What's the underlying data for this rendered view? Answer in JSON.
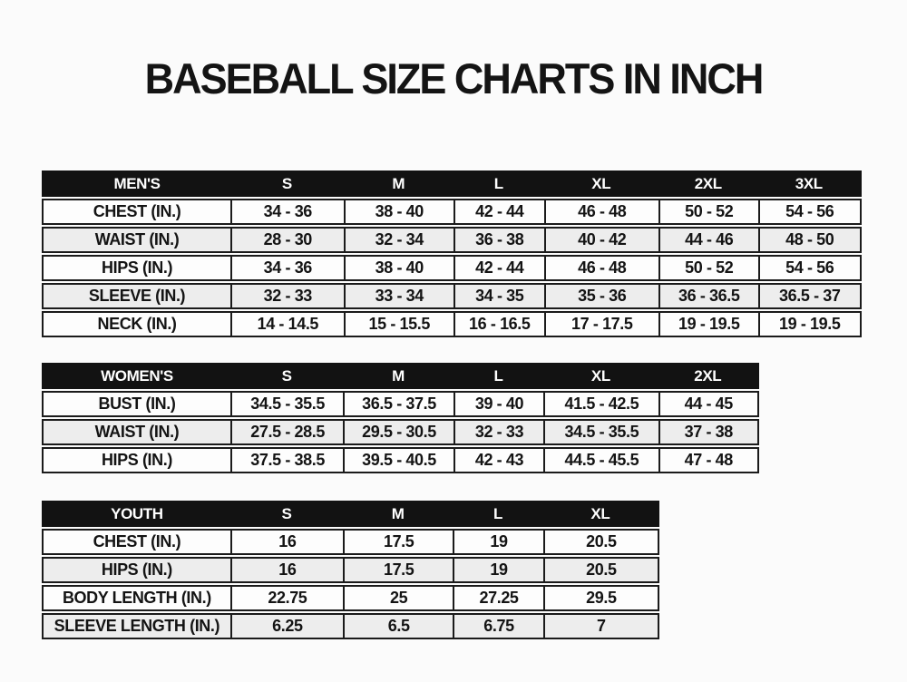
{
  "title": "BASEBALL SIZE CHARTS IN INCH",
  "colors": {
    "page_bg": "#fbfbfb",
    "header_bg": "#121212",
    "header_text": "#ffffff",
    "row_bg": "#fdfdfd",
    "row_alt_bg": "#ededed",
    "border": "#1b1b1b",
    "text": "#141414"
  },
  "tables": [
    {
      "name": "mens",
      "header": [
        "MEN'S",
        "S",
        "M",
        "L",
        "XL",
        "2XL",
        "3XL"
      ],
      "rows": [
        {
          "label": "CHEST (IN.)",
          "values": [
            "34 - 36",
            "38 - 40",
            "42 - 44",
            "46 - 48",
            "50 - 52",
            "54 - 56"
          ]
        },
        {
          "label": "WAIST (IN.)",
          "values": [
            "28 - 30",
            "32 - 34",
            "36 - 38",
            "40 - 42",
            "44 - 46",
            "48 - 50"
          ]
        },
        {
          "label": "HIPS (IN.)",
          "values": [
            "34 - 36",
            "38 - 40",
            "42 - 44",
            "46 - 48",
            "50 - 52",
            "54 - 56"
          ]
        },
        {
          "label": "SLEEVE (IN.)",
          "values": [
            "32 - 33",
            "33 - 34",
            "34 - 35",
            "35 - 36",
            "36 - 36.5",
            "36.5 - 37"
          ]
        },
        {
          "label": "NECK (IN.)",
          "values": [
            "14 - 14.5",
            "15 - 15.5",
            "16 - 16.5",
            "17 - 17.5",
            "19 - 19.5",
            "19 - 19.5"
          ]
        }
      ]
    },
    {
      "name": "womens",
      "header": [
        "WOMEN'S",
        "S",
        "M",
        "L",
        "XL",
        "2XL"
      ],
      "rows": [
        {
          "label": "BUST (IN.)",
          "values": [
            "34.5 - 35.5",
            "36.5 - 37.5",
            "39 - 40",
            "41.5 - 42.5",
            "44 - 45"
          ]
        },
        {
          "label": "WAIST (IN.)",
          "values": [
            "27.5 - 28.5",
            "29.5 - 30.5",
            "32 - 33",
            "34.5 - 35.5",
            "37 - 38"
          ]
        },
        {
          "label": "HIPS (IN.)",
          "values": [
            "37.5 - 38.5",
            "39.5 - 40.5",
            "42 - 43",
            "44.5 - 45.5",
            "47 - 48"
          ]
        }
      ]
    },
    {
      "name": "youth",
      "header": [
        "YOUTH",
        "S",
        "M",
        "L",
        "XL"
      ],
      "rows": [
        {
          "label": "CHEST (IN.)",
          "values": [
            "16",
            "17.5",
            "19",
            "20.5"
          ]
        },
        {
          "label": "HIPS (IN.)",
          "values": [
            "16",
            "17.5",
            "19",
            "20.5"
          ]
        },
        {
          "label": "BODY LENGTH (IN.)",
          "values": [
            "22.75",
            "25",
            "27.25",
            "29.5"
          ]
        },
        {
          "label": "SLEEVE LENGTH (IN.)",
          "values": [
            "6.25",
            "6.5",
            "6.75",
            "7"
          ]
        }
      ]
    }
  ]
}
